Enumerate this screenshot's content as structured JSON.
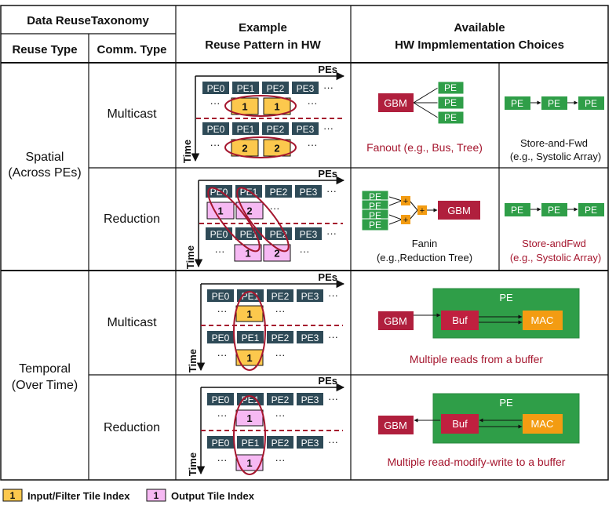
{
  "header": {
    "taxonomy": "Data ReuseTaxonomy",
    "reuse_type": "Reuse Type",
    "comm_type": "Comm. Type",
    "example_l1": "Example",
    "example_l2": "Reuse Pattern in HW",
    "choices_l1": "Available",
    "choices_l2": "HW Impmlementation Choices"
  },
  "rows": {
    "spatial_l1": "Spatial",
    "spatial_l2": "(Across PEs)",
    "temporal_l1": "Temporal",
    "temporal_l2": "(Over Time)",
    "multicast": "Multicast",
    "reduction": "Reduction"
  },
  "pattern": {
    "pes_label": "PEs",
    "time_label": "Time",
    "pe_names": [
      "PE0",
      "PE1",
      "PE2",
      "PE3"
    ],
    "ellipsis": "···",
    "idx1": "1",
    "idx2": "2"
  },
  "impl": {
    "gbm": "GBM",
    "pe": "PE",
    "plus": "+",
    "buf": "Buf",
    "mac": "MAC",
    "fanout_caption": "Fanout (e.g., Bus, Tree)",
    "storefwd_l1": "Store-and-Fwd",
    "storefwd_l2": "(e.g., Systolic Array)",
    "fanin_l1": "Fanin",
    "fanin_l2": "(e.g.,Reduction Tree)",
    "storefwd_red_l1": "Store-andFwd",
    "storefwd_red_l2": "(e.g., Systolic Array)",
    "temporal_multicast_caption": "Multiple reads from a buffer",
    "temporal_reduction_caption": "Multiple read-modify-write to a buffer"
  },
  "legend": {
    "key1": "1",
    "input_label": "Input/Filter Tile Index",
    "key2": "1",
    "output_label": "Output Tile Index"
  },
  "colors": {
    "pe_dark": "#2e4a57",
    "input_tile": "#fcc84d",
    "output_tile": "#f6b9f3",
    "ellipse": "#a5162e",
    "gbm": "#b01f3d",
    "pe_green": "#2f9e48",
    "buf": "#c0203f",
    "mac": "#f39c12",
    "caption_red": "#a5162e"
  }
}
